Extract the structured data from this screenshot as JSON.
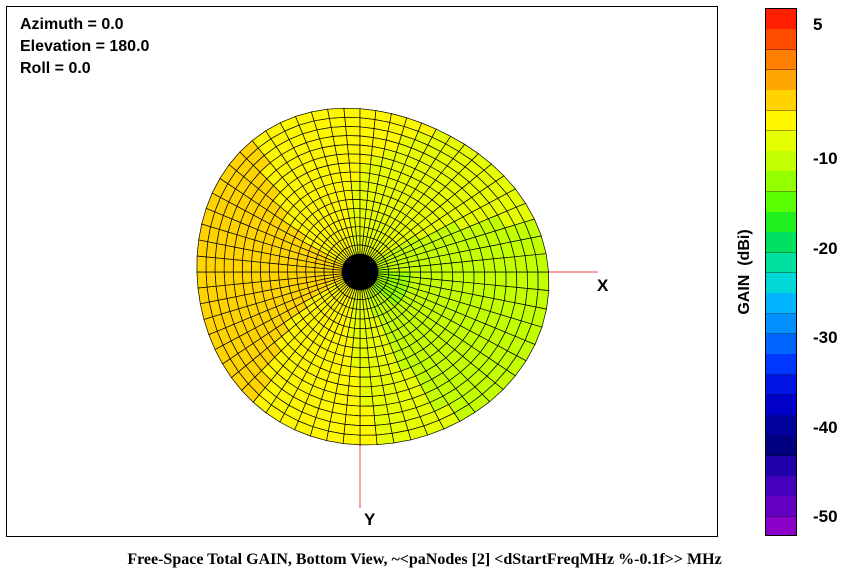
{
  "view_info": {
    "azimuth": "Azimuth = 0.0",
    "elevation": "Elevation = 180.0",
    "roll": "Roll = 0.0"
  },
  "axes": {
    "x_label": "X",
    "y_label": "Y",
    "axis_color": "#ff7f7f"
  },
  "caption": "Free-Space Total GAIN, Bottom View, ~<paNodes [2] <dStartFreqMHz %-0.1f>> MHz",
  "colorbar": {
    "label": "GAIN  (dBi)",
    "ticks": [
      "5",
      "-10",
      "-20",
      "-30",
      "-40",
      "-50"
    ],
    "tick_values": [
      5,
      -10,
      -20,
      -30,
      -40,
      -50
    ],
    "range": [
      -52,
      7
    ],
    "colors": [
      "#ff1e00",
      "#ff4d00",
      "#ff8000",
      "#ffa600",
      "#ffd300",
      "#fff700",
      "#e6ff00",
      "#c2ff00",
      "#94ff00",
      "#5aff00",
      "#1fef1f",
      "#00e060",
      "#00e0a0",
      "#00d8d8",
      "#00b4ff",
      "#0090ff",
      "#0064ff",
      "#0037ff",
      "#0014e6",
      "#0000c8",
      "#00009a",
      "#000080",
      "#2000a8",
      "#4400bb",
      "#6400c4",
      "#8a00c8"
    ]
  },
  "chart_data": {
    "type": "heatmap",
    "title": "Free-Space Total GAIN, Bottom View, ~<paNodes [2] <dStartFreqMHz %-0.1f>> MHz",
    "colorbar_label": "GAIN  (dBi)",
    "colorbar_range": [
      -52,
      7
    ],
    "colorbar_ticks": [
      5,
      -10,
      -20,
      -30,
      -40,
      -50
    ],
    "view": {
      "azimuth": 0.0,
      "elevation": 180.0,
      "roll": 0.0
    },
    "axes": [
      "X",
      "Y"
    ],
    "gain_by_direction": [
      {
        "direction": "-X",
        "gain_dbi": -2
      },
      {
        "direction": "-X-Y",
        "gain_dbi": -4
      },
      {
        "direction": "-Y",
        "gain_dbi": -6
      },
      {
        "direction": "+X-Y",
        "gain_dbi": -10
      },
      {
        "direction": "+X",
        "gain_dbi": -10
      },
      {
        "direction": "+X+Y",
        "gain_dbi": -7
      },
      {
        "direction": "+Y",
        "gain_dbi": -6
      },
      {
        "direction": "-X+Y",
        "gain_dbi": -4
      }
    ]
  }
}
